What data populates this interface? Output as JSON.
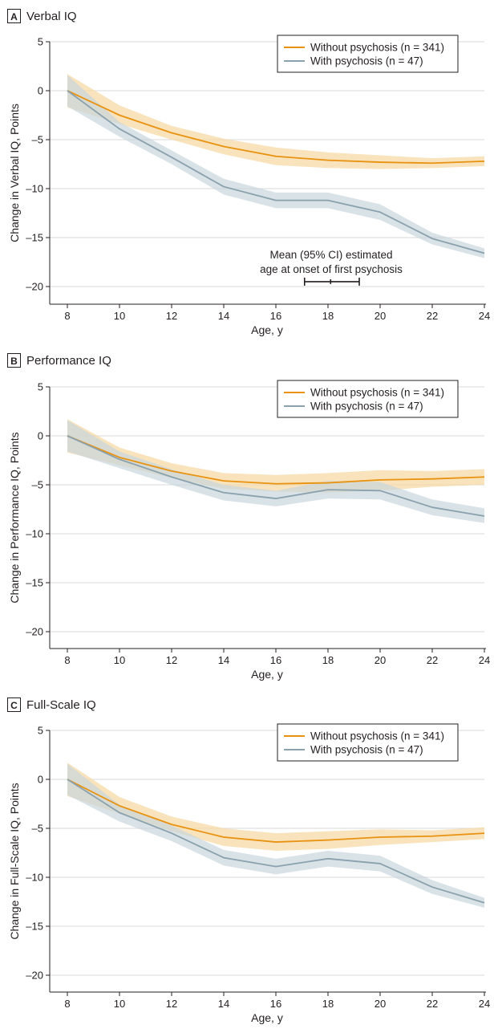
{
  "colors": {
    "without": "#e8920f",
    "without_band": "#f7d9a6",
    "with": "#8aa1ae",
    "with_band": "#c9d6dd",
    "axis": "#231f20"
  },
  "chart_data": [
    {
      "type": "line",
      "panel_letter": "A",
      "title": "Verbal IQ",
      "xlabel": "Age, y",
      "ylabel": "Change in Verbal IQ, Points",
      "xlim": [
        7.5,
        24
      ],
      "ylim": [
        -22,
        5
      ],
      "x_ticks": [
        8,
        10,
        12,
        14,
        16,
        18,
        20,
        22,
        24
      ],
      "y_ticks": [
        5,
        0,
        -5,
        -10,
        -15,
        -20
      ],
      "x_tick_labels": [
        "8",
        "10",
        "12",
        "14",
        "16",
        "18",
        "20",
        "22",
        "24"
      ],
      "y_tick_labels": [
        "5",
        "0",
        "–5",
        "–10",
        "–15",
        "–20"
      ],
      "x": [
        8,
        10,
        12,
        14,
        16,
        18,
        20,
        22,
        24
      ],
      "grid": "horizontal",
      "legend_position": "top-right",
      "series": [
        {
          "name": "Without psychosis (n = 341)",
          "values": [
            0,
            -2.5,
            -4.3,
            -5.7,
            -6.7,
            -7.1,
            -7.3,
            -7.4,
            -7.2
          ],
          "ci_lower": [
            -1.7,
            -3.4,
            -5.0,
            -6.5,
            -7.6,
            -7.9,
            -8.0,
            -7.9,
            -7.7
          ],
          "ci_upper": [
            1.7,
            -1.5,
            -3.6,
            -4.9,
            -5.8,
            -6.3,
            -6.6,
            -6.9,
            -6.7
          ]
        },
        {
          "name": "With psychosis (n = 47)",
          "values": [
            0,
            -3.9,
            -6.8,
            -9.8,
            -11.2,
            -11.2,
            -12.4,
            -15.1,
            -16.6
          ],
          "ci_lower": [
            -1.6,
            -4.7,
            -7.5,
            -10.6,
            -12.0,
            -12.0,
            -13.2,
            -15.7,
            -17.1
          ],
          "ci_upper": [
            1.6,
            -3.2,
            -6.1,
            -9.0,
            -10.4,
            -10.4,
            -11.6,
            -14.5,
            -16.1
          ]
        }
      ],
      "annotation": {
        "lines": [
          "Mean (95% CI) estimated",
          "age at onset of first psychosis"
        ],
        "mean": 18.1,
        "ci": [
          17.1,
          19.2
        ],
        "y": -19.5
      }
    },
    {
      "type": "line",
      "panel_letter": "B",
      "title": "Performance IQ",
      "xlabel": "Age, y",
      "ylabel": "Change in Performance IQ, Points",
      "xlim": [
        7.5,
        24
      ],
      "ylim": [
        -22,
        5
      ],
      "x_ticks": [
        8,
        10,
        12,
        14,
        16,
        18,
        20,
        22,
        24
      ],
      "y_ticks": [
        5,
        0,
        -5,
        -10,
        -15,
        -20
      ],
      "x_tick_labels": [
        "8",
        "10",
        "12",
        "14",
        "16",
        "18",
        "20",
        "22",
        "24"
      ],
      "y_tick_labels": [
        "5",
        "0",
        "–5",
        "–10",
        "–15",
        "–20"
      ],
      "x": [
        8,
        10,
        12,
        14,
        16,
        18,
        20,
        22,
        24
      ],
      "grid": "horizontal",
      "legend_position": "top-right",
      "series": [
        {
          "name": "Without psychosis (n = 341)",
          "values": [
            0,
            -2.2,
            -3.6,
            -4.6,
            -4.9,
            -4.8,
            -4.5,
            -4.4,
            -4.2
          ],
          "ci_lower": [
            -1.7,
            -3.0,
            -4.3,
            -5.4,
            -5.7,
            -5.8,
            -5.6,
            -5.2,
            -5.0
          ],
          "ci_upper": [
            1.7,
            -1.2,
            -2.8,
            -3.8,
            -4.0,
            -3.8,
            -3.5,
            -3.6,
            -3.4
          ]
        },
        {
          "name": "With psychosis (n = 47)",
          "values": [
            0,
            -2.4,
            -4.2,
            -5.8,
            -6.4,
            -5.5,
            -5.6,
            -7.3,
            -8.2
          ],
          "ci_lower": [
            -1.6,
            -3.3,
            -5.0,
            -6.6,
            -7.2,
            -6.4,
            -6.5,
            -8.1,
            -8.9
          ],
          "ci_upper": [
            1.6,
            -1.6,
            -3.4,
            -5.0,
            -5.6,
            -4.6,
            -4.7,
            -6.5,
            -7.4
          ]
        }
      ]
    },
    {
      "type": "line",
      "panel_letter": "C",
      "title": "Full-Scale IQ",
      "xlabel": "Age, y",
      "ylabel": "Change in Full-Scale IQ, Points",
      "xlim": [
        7.5,
        24
      ],
      "ylim": [
        -22,
        5
      ],
      "x_ticks": [
        8,
        10,
        12,
        14,
        16,
        18,
        20,
        22,
        24
      ],
      "y_ticks": [
        5,
        0,
        -5,
        -10,
        -15,
        -20
      ],
      "x_tick_labels": [
        "8",
        "10",
        "12",
        "14",
        "16",
        "18",
        "20",
        "22",
        "24"
      ],
      "y_tick_labels": [
        "5",
        "0",
        "–5",
        "–10",
        "–15",
        "–20"
      ],
      "x": [
        8,
        10,
        12,
        14,
        16,
        18,
        20,
        22,
        24
      ],
      "grid": "horizontal",
      "legend_position": "top-right",
      "series": [
        {
          "name": "Without psychosis (n = 341)",
          "values": [
            0,
            -2.7,
            -4.6,
            -5.9,
            -6.4,
            -6.2,
            -5.9,
            -5.8,
            -5.5
          ],
          "ci_lower": [
            -1.7,
            -3.5,
            -5.3,
            -6.8,
            -7.3,
            -7.1,
            -6.7,
            -6.4,
            -6.1
          ],
          "ci_upper": [
            1.7,
            -1.8,
            -3.8,
            -5.0,
            -5.5,
            -5.3,
            -5.1,
            -5.2,
            -4.9
          ]
        },
        {
          "name": "With psychosis (n = 47)",
          "values": [
            0,
            -3.4,
            -5.5,
            -8.0,
            -8.9,
            -8.1,
            -8.6,
            -11.0,
            -12.6
          ],
          "ci_lower": [
            -1.6,
            -4.3,
            -6.3,
            -8.8,
            -9.7,
            -8.9,
            -9.4,
            -11.7,
            -13.1
          ],
          "ci_upper": [
            1.6,
            -2.6,
            -4.7,
            -7.2,
            -8.1,
            -7.3,
            -7.8,
            -10.3,
            -12.1
          ]
        }
      ]
    }
  ]
}
